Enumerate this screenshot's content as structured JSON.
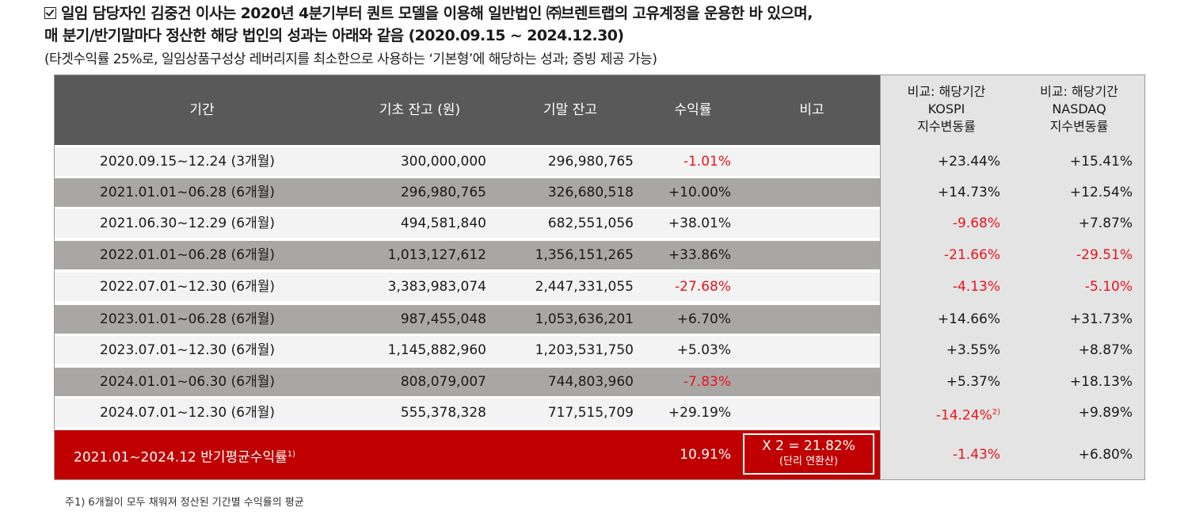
{
  "header": {
    "line1": "일임 담당자인 김중건 이사는 2020년 4분기부터 퀀트 모델을 이용해 일반법인 ㈜브렌트랩의 고유계정을 운용한 바 있으며,",
    "line2": "매 분기/반기말마다 정산한 해당 법인의 성과는 아래와 같음 (2020.09.15 ~ 2024.12.30)",
    "line3": "(타겟수익률 25%로, 일임상품구성상 레버리지를 최소한으로 사용하는 ‘기본형’에 해당하는 성과; 증빙 제공 가능)"
  },
  "table": {
    "headers": {
      "period": "기간",
      "start_balance": "기초 잔고 (원)",
      "end_balance": "기말 잔고",
      "return": "수익률",
      "note": "비고",
      "kospi": "비교: 해당기간 KOSPI 지수변동률",
      "kospi_lines": [
        "비교: 해당기간",
        "KOSPI",
        "지수변동률"
      ],
      "nasdaq_lines": [
        "비교: 해당기간",
        "NASDAQ",
        "지수변동률"
      ]
    },
    "rows": [
      {
        "period": "2020.09.15~12.24 (3개월)",
        "start": "300,000,000",
        "end": "296,980,765",
        "ret": "-1.01%",
        "kospi": "+23.44%",
        "nasdaq": "+15.41%"
      },
      {
        "period": "2021.01.01~06.28 (6개월)",
        "start": "296,980,765",
        "end": "326,680,518",
        "ret": "+10.00%",
        "kospi": "+14.73%",
        "nasdaq": "+12.54%"
      },
      {
        "period": "2021.06.30~12.29 (6개월)",
        "start": "494,581,840",
        "end": "682,551,056",
        "ret": "+38.01%",
        "kospi": "-9.68%",
        "nasdaq": "+7.87%"
      },
      {
        "period": "2022.01.01~06.28 (6개월)",
        "start": "1,013,127,612",
        "end": "1,356,151,265",
        "ret": "+33.86%",
        "kospi": "-21.66%",
        "nasdaq": "-29.51%"
      },
      {
        "period": "2022.07.01~12.30 (6개월)",
        "start": "3,383,983,074",
        "end": "2,447,331,055",
        "ret": "-27.68%",
        "kospi": "-4.13%",
        "nasdaq": "-5.10%"
      },
      {
        "period": "2023.01.01~06.28 (6개월)",
        "start": "987,455,048",
        "end": "1,053,636,201",
        "ret": "+6.70%",
        "kospi": "+14.66%",
        "nasdaq": "+31.73%"
      },
      {
        "period": "2023.07.01~12.30 (6개월)",
        "start": "1,145,882,960",
        "end": "1,203,531,750",
        "ret": "+5.03%",
        "kospi": "+3.55%",
        "nasdaq": "+8.87%"
      },
      {
        "period": "2024.01.01~06.30 (6개월)",
        "start": "808,079,007",
        "end": "744,803,960",
        "ret": "-7.83%",
        "kospi": "+5.37%",
        "nasdaq": "+18.13%"
      },
      {
        "period": "2024.07.01~12.30 (6개월)",
        "start": "555,378,328",
        "end": "717,515,709",
        "ret": "+29.19%",
        "kospi": "-14.24%",
        "kospi_sup": "2)",
        "nasdaq": "+9.89%"
      }
    ],
    "summary": {
      "label": "2021.01~2024.12 반기평균수익률",
      "label_sup": "1)",
      "ret": "10.91%",
      "annualized": "X 2 = 21.82%",
      "annualized_note": "(단리 연환산)",
      "kospi": "-1.43%",
      "nasdaq": "+6.80%"
    }
  },
  "footnote": "주1) 6개월이 모두 채워져 정산된 기간별 수익률의 평균",
  "colors": {
    "header_gray": "#595959",
    "row_gray": "#a9a6a6",
    "summary_red": "#c00000",
    "negative_red": "#e8141b"
  }
}
